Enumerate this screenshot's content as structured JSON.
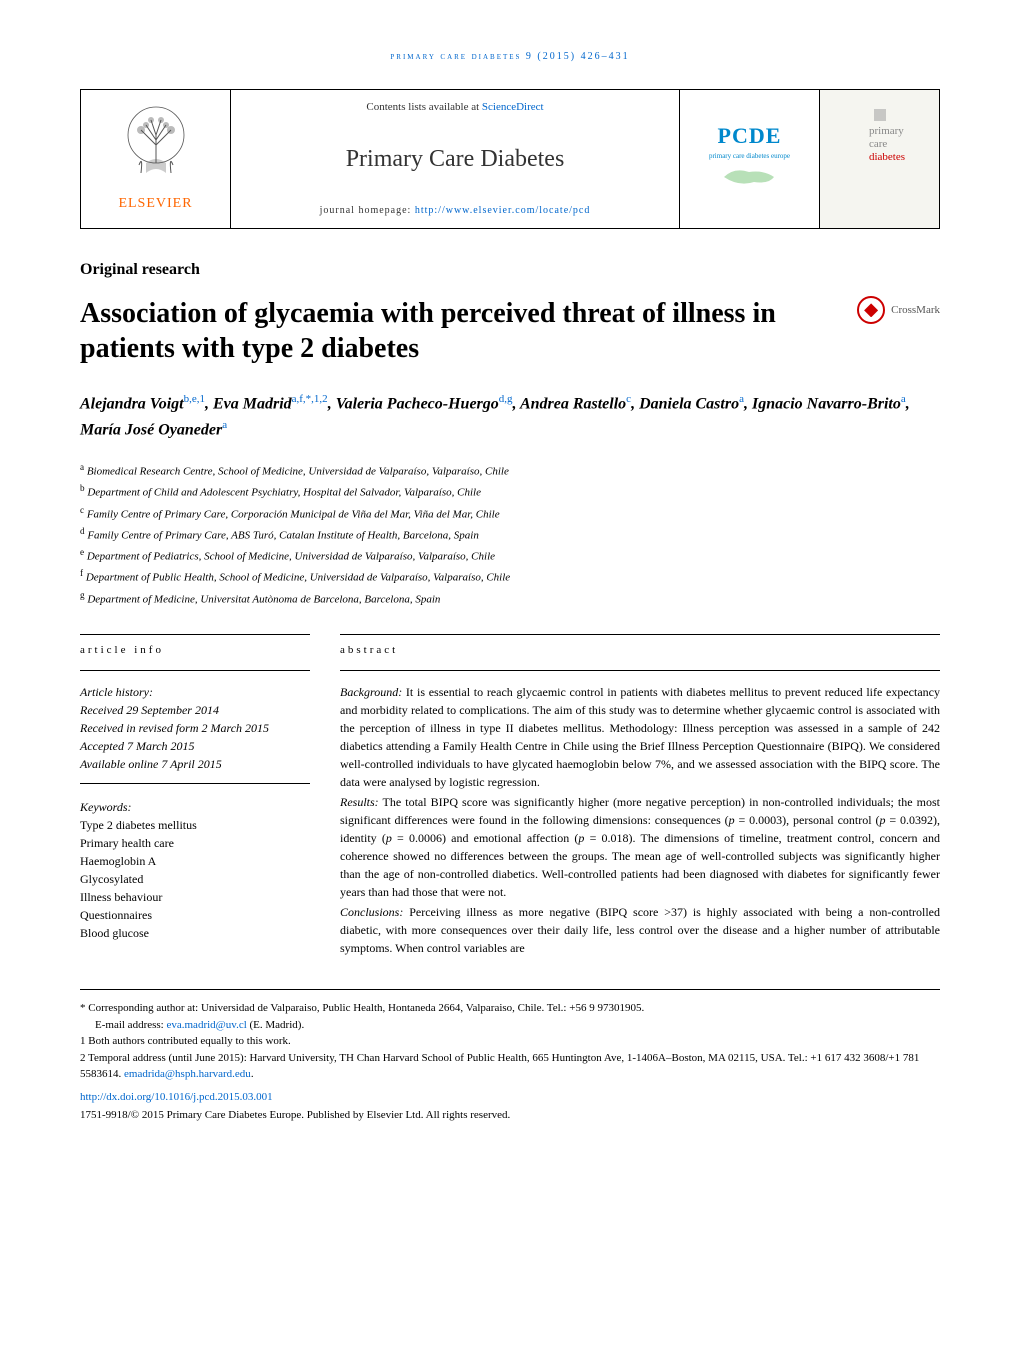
{
  "running_header": "primary care diabetes 9 (2015) 426–431",
  "masthead": {
    "contents_prefix": "Contents lists available at ",
    "contents_link": "ScienceDirect",
    "journal_name": "Primary Care Diabetes",
    "homepage_prefix": "journal homepage: ",
    "homepage_url": "http://www.elsevier.com/locate/pcd",
    "publisher_name": "ELSEVIER",
    "pcde_label": "PCDE",
    "pcde_sublabel": "primary care diabetes europe",
    "cover_line1": "primary",
    "cover_line2": "care",
    "cover_line3": "diabetes"
  },
  "article_type": "Original research",
  "title": "Association of glycaemia with perceived threat of illness in patients with type 2 diabetes",
  "crossmark_label": "CrossMark",
  "authors_html": "Alejandra Voigt<sup>b,e,1</sup>, Eva Madrid<sup>a,f,*,1,2</sup>, Valeria Pacheco-Huergo<sup>d,g</sup>, Andrea Rastello<sup>c</sup>, Daniela Castro<sup>a</sup>, Ignacio Navarro-Brito<sup>a</sup>, María José Oyaneder<sup>a</sup>",
  "affiliations": [
    {
      "sup": "a",
      "text": "Biomedical Research Centre, School of Medicine, Universidad de Valparaíso, Valparaíso, Chile"
    },
    {
      "sup": "b",
      "text": "Department of Child and Adolescent Psychiatry, Hospital del Salvador, Valparaíso, Chile"
    },
    {
      "sup": "c",
      "text": "Family Centre of Primary Care, Corporación Municipal de Viña del Mar, Viña del Mar, Chile"
    },
    {
      "sup": "d",
      "text": "Family Centre of Primary Care, ABS Turó, Catalan Institute of Health, Barcelona, Spain"
    },
    {
      "sup": "e",
      "text": "Department of Pediatrics, School of Medicine, Universidad de Valparaíso, Valparaíso, Chile"
    },
    {
      "sup": "f",
      "text": "Department of Public Health, School of Medicine, Universidad de Valparaíso, Valparaíso, Chile"
    },
    {
      "sup": "g",
      "text": "Department of Medicine, Universitat Autònoma de Barcelona, Barcelona, Spain"
    }
  ],
  "info_head": "article info",
  "abstract_head": "abstract",
  "history": {
    "label": "Article history:",
    "received": "Received 29 September 2014",
    "revised": "Received in revised form 2 March 2015",
    "accepted": "Accepted 7 March 2015",
    "online": "Available online 7 April 2015"
  },
  "keywords": {
    "label": "Keywords:",
    "items": [
      "Type 2 diabetes mellitus",
      "Primary health care",
      "Haemoglobin A",
      "Glycosylated",
      "Illness behaviour",
      "Questionnaires",
      "Blood glucose"
    ]
  },
  "abstract": {
    "background": "Background: It is essential to reach glycaemic control in patients with diabetes mellitus to prevent reduced life expectancy and morbidity related to complications. The aim of this study was to determine whether glycaemic control is associated with the perception of illness in type II diabetes mellitus. Methodology: Illness perception was assessed in a sample of 242 diabetics attending a Family Health Centre in Chile using the Brief Illness Perception Questionnaire (BIPQ). We considered well-controlled individuals to have glycated haemoglobin below 7%, and we assessed association with the BIPQ score. The data were analysed by logistic regression.",
    "results": "Results: The total BIPQ score was significantly higher (more negative perception) in non-controlled individuals; the most significant differences were found in the following dimensions: consequences (p = 0.0003), personal control (p = 0.0392), identity (p = 0.0006) and emotional affection (p = 0.018). The dimensions of timeline, treatment control, concern and coherence showed no differences between the groups. The mean age of well-controlled subjects was significantly higher than the age of non-controlled diabetics. Well-controlled patients had been diagnosed with diabetes for significantly fewer years than had those that were not.",
    "conclusions": "Conclusions: Perceiving illness as more negative (BIPQ score >37) is highly associated with being a non-controlled diabetic, with more consequences over their daily life, less control over the disease and a higher number of attributable symptoms. When control variables are"
  },
  "footnotes": {
    "corr": "* Corresponding author at: Universidad de Valparaiso, Public Health, Hontaneda 2664, Valparaiso, Chile. Tel.: +56 9 97301905.",
    "email_prefix": "E-mail address: ",
    "email": "eva.madrid@uv.cl",
    "email_suffix": " (E. Madrid).",
    "note1": "1  Both authors contributed equally to this work.",
    "note2_prefix": "2  Temporal address (until June 2015): Harvard University, TH Chan Harvard School of Public Health, 665 Huntington Ave, 1-1406A–Boston, MA 02115, USA. Tel.: +1 617 432 3608/+1 781 5583614. ",
    "note2_email": "emadrida@hsph.harvard.edu",
    "doi": "http://dx.doi.org/10.1016/j.pcd.2015.03.001",
    "copyright": "1751-9918/© 2015 Primary Care Diabetes Europe. Published by Elsevier Ltd. All rights reserved."
  },
  "colors": {
    "link": "#0066cc",
    "publisher": "#ff6600",
    "crossmark": "#cc0000",
    "pcde": "#0088cc"
  }
}
